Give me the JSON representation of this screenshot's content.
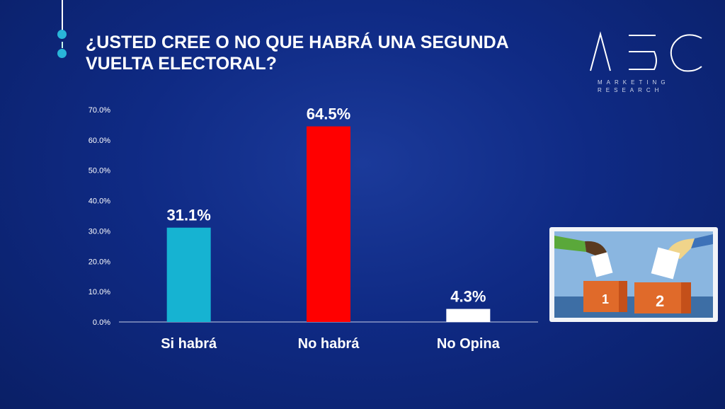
{
  "logo": {
    "text": "ABC",
    "line1": "MARKETING",
    "line2": "RESEARCH"
  },
  "chart_data": {
    "type": "bar",
    "title": "¿USTED CREE O NO QUE HABRÁ UNA SEGUNDA VUELTA ELECTORAL?",
    "categories": [
      "Si habrá",
      "No habrá",
      "No Opina"
    ],
    "values": [
      31.1,
      64.5,
      4.3
    ],
    "data_labels": [
      "31.1%",
      "64.5%",
      "4.3%"
    ],
    "colors": [
      "#16b3d2",
      "#ff0000",
      "#ffffff"
    ],
    "ylim": [
      0,
      70
    ],
    "yticks": [
      "0.0%",
      "10.0%",
      "20.0%",
      "30.0%",
      "40.0%",
      "50.0%",
      "60.0%",
      "70.0%"
    ],
    "grid": false,
    "xlabel": "",
    "ylabel": ""
  },
  "illustration": {
    "box1": "1",
    "box2": "2"
  }
}
